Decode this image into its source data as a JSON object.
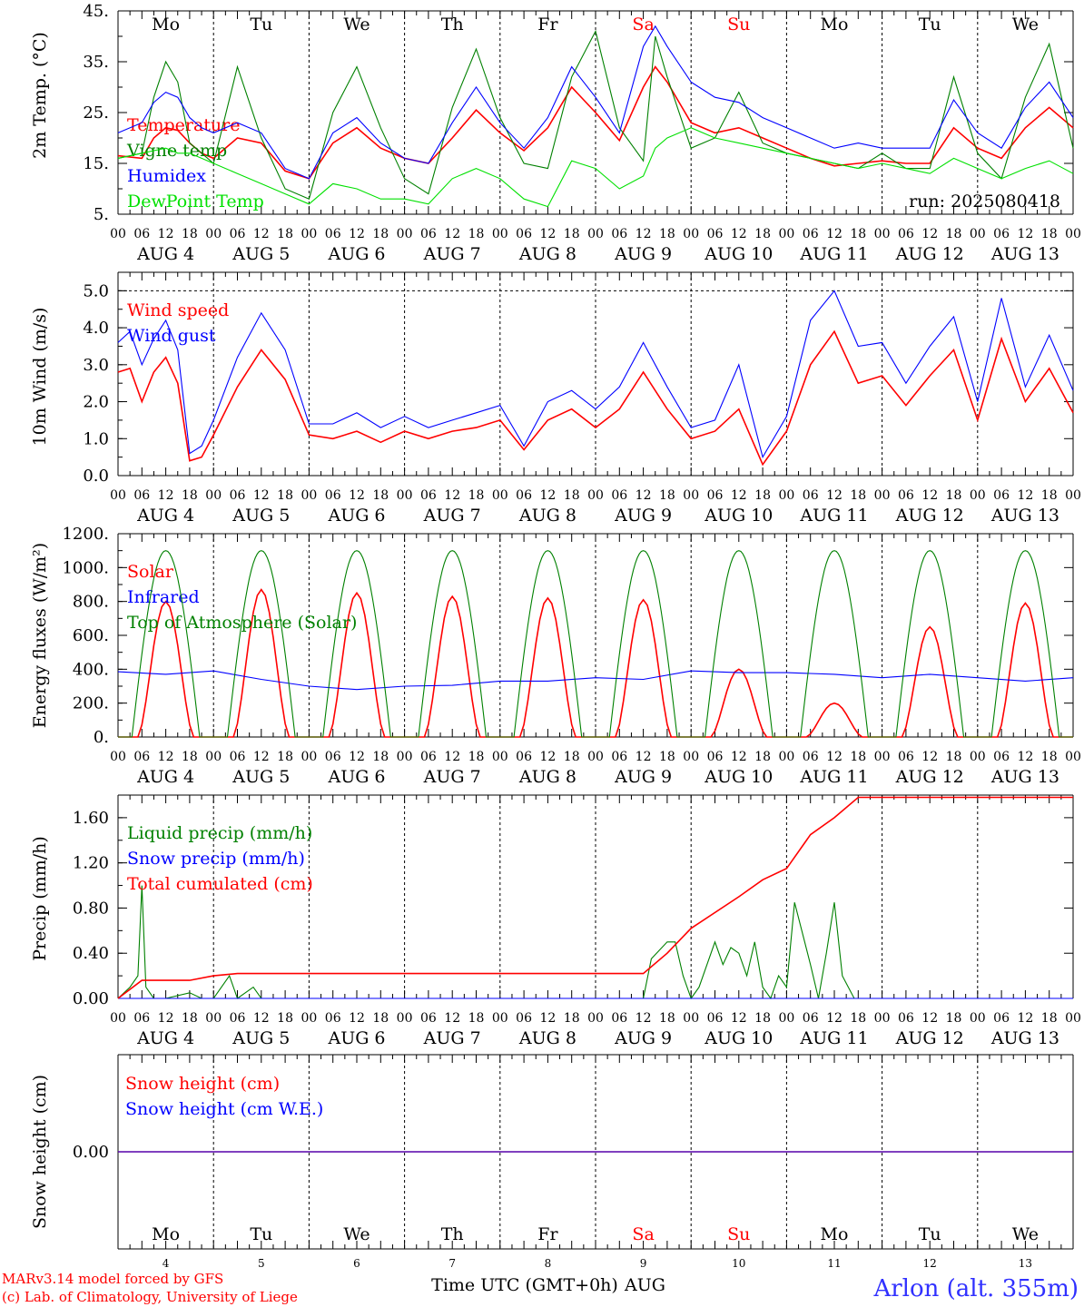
{
  "colors": {
    "red": "#ff0000",
    "blue": "#0000ff",
    "green": "#008000",
    "lightgreen": "#00e000",
    "grey": "#808080",
    "black": "#000000"
  },
  "xaxis": {
    "hour_ticks": [
      "00",
      "06",
      "12",
      "18"
    ],
    "day_labels": [
      "AUG  4",
      "AUG  5",
      "AUG  6",
      "AUG  7",
      "AUG  8",
      "AUG  9",
      "AUG 10",
      "AUG 11",
      "AUG 12",
      "AUG 13"
    ],
    "weekdays": [
      "Mo",
      "Tu",
      "We",
      "Th",
      "Fr",
      "Sa",
      "Su",
      "Mo",
      "Tu",
      "We"
    ],
    "weekend": [
      false,
      false,
      false,
      false,
      false,
      true,
      true,
      false,
      false,
      false
    ],
    "day_numbers": [
      "4",
      "5",
      "6",
      "7",
      "8",
      "9",
      "10",
      "11",
      "12",
      "13"
    ],
    "xlabel": "Time UTC (GMT+0h)",
    "month": "AUG"
  },
  "footer": {
    "model": "MARv3.14 model forced by GFS",
    "copyright": "(c) Lab. of Climatology, University of Liege",
    "station": "Arlon (alt. 355m)"
  },
  "chart_data": [
    {
      "type": "line",
      "ylabel": "2m Temp. (°C)",
      "yticks": [
        "5.",
        "15.",
        "25.",
        "35.",
        "45."
      ],
      "ylim": [
        5,
        45
      ],
      "x_range_hours": [
        0,
        240
      ],
      "run": "run: 2025080418",
      "series": [
        {
          "name": "Temperature",
          "color": "red",
          "x": [
            0,
            6,
            9,
            12,
            15,
            18,
            21,
            24,
            30,
            36,
            42,
            48,
            54,
            60,
            66,
            72,
            78,
            84,
            90,
            96,
            102,
            108,
            114,
            120,
            126,
            132,
            135,
            138,
            144,
            150,
            156,
            162,
            168,
            174,
            180,
            186,
            192,
            198,
            204,
            210,
            216,
            222,
            228,
            234,
            240
          ],
          "y": [
            16.5,
            16,
            20,
            22,
            21.5,
            19,
            17,
            16,
            20,
            19,
            13.5,
            12,
            19,
            22,
            18,
            16,
            15,
            20,
            25.5,
            21,
            17.5,
            22,
            30,
            25,
            19.5,
            30,
            34,
            31,
            23,
            21,
            22,
            20,
            18,
            16,
            14.5,
            15,
            15.5,
            15,
            15,
            22,
            18,
            16,
            22,
            26,
            22
          ]
        },
        {
          "name": "Vigne temp",
          "color": "green",
          "x": [
            0,
            6,
            9,
            12,
            15,
            18,
            21,
            24,
            30,
            36,
            42,
            48,
            54,
            60,
            66,
            72,
            78,
            84,
            90,
            96,
            102,
            108,
            114,
            120,
            126,
            132,
            135,
            138,
            144,
            150,
            156,
            162,
            168,
            174,
            180,
            186,
            192,
            198,
            204,
            210,
            216,
            222,
            228,
            234,
            240
          ],
          "y": [
            16,
            17,
            28,
            35,
            31,
            19,
            17,
            15,
            34,
            20,
            10,
            8,
            25,
            34,
            22,
            12,
            9,
            26,
            37.5,
            24,
            15,
            14,
            32,
            41,
            22,
            15.5,
            40,
            32,
            18,
            20,
            29,
            19,
            17,
            16,
            15,
            14,
            17,
            14,
            14,
            32,
            17,
            12,
            28,
            38.5,
            18
          ]
        },
        {
          "name": "Humidex",
          "color": "blue",
          "x": [
            0,
            6,
            9,
            12,
            15,
            18,
            21,
            24,
            30,
            36,
            42,
            48,
            54,
            60,
            66,
            72,
            78,
            84,
            90,
            96,
            102,
            108,
            114,
            120,
            126,
            132,
            135,
            138,
            144,
            150,
            156,
            162,
            168,
            174,
            180,
            186,
            192,
            198,
            204,
            210,
            216,
            222,
            228,
            234,
            240
          ],
          "y": [
            21,
            23,
            27,
            29,
            28,
            24,
            22,
            21,
            23,
            21,
            14,
            12,
            21,
            24,
            19,
            16,
            15,
            23,
            30,
            23,
            18,
            24,
            34,
            28,
            21,
            38,
            42,
            38,
            31,
            28,
            27,
            24,
            22,
            20,
            18,
            19,
            18,
            18,
            18,
            27.5,
            21,
            18,
            26,
            31,
            24
          ]
        },
        {
          "name": "DewPoint Temp",
          "color": "lightgreen",
          "x": [
            0,
            6,
            9,
            12,
            15,
            18,
            21,
            24,
            30,
            36,
            42,
            48,
            54,
            60,
            66,
            72,
            78,
            84,
            90,
            96,
            102,
            108,
            114,
            120,
            126,
            132,
            135,
            138,
            144,
            150,
            156,
            162,
            168,
            174,
            180,
            186,
            192,
            198,
            204,
            210,
            216,
            222,
            228,
            234,
            240
          ],
          "y": [
            16,
            17,
            17.5,
            18,
            17,
            17,
            16,
            15,
            13,
            11,
            9,
            7,
            11,
            10,
            8,
            8,
            7,
            12,
            14,
            12,
            8,
            6.5,
            15.5,
            14,
            10,
            12.5,
            18,
            20,
            22,
            20,
            19,
            18,
            17,
            16,
            15,
            14,
            15,
            14,
            13,
            16,
            14,
            12,
            14,
            15.5,
            13
          ]
        }
      ]
    },
    {
      "type": "line",
      "ylabel": "10m Wind (m/s)",
      "yticks": [
        "0.0",
        "1.0",
        "2.0",
        "3.0",
        "4.0",
        "5.0"
      ],
      "ylim": [
        0,
        5.5
      ],
      "x_range_hours": [
        0,
        240
      ],
      "series": [
        {
          "name": "Wind speed",
          "color": "red",
          "x": [
            0,
            3,
            6,
            9,
            12,
            15,
            18,
            21,
            24,
            30,
            36,
            42,
            48,
            54,
            60,
            66,
            72,
            78,
            84,
            90,
            96,
            102,
            108,
            114,
            120,
            126,
            132,
            138,
            144,
            150,
            156,
            162,
            168,
            174,
            180,
            186,
            192,
            198,
            204,
            210,
            216,
            222,
            228,
            234,
            240
          ],
          "y": [
            2.8,
            2.9,
            2.0,
            2.8,
            3.2,
            2.5,
            0.4,
            0.5,
            1.1,
            2.4,
            3.4,
            2.6,
            1.1,
            1.0,
            1.2,
            0.9,
            1.2,
            1.0,
            1.2,
            1.3,
            1.5,
            0.7,
            1.5,
            1.8,
            1.3,
            1.8,
            2.8,
            1.8,
            1.0,
            1.2,
            1.8,
            0.3,
            1.2,
            3.0,
            3.9,
            2.5,
            2.7,
            1.9,
            2.7,
            3.4,
            1.5,
            3.7,
            2.0,
            2.9,
            1.7
          ]
        },
        {
          "name": "Wind gust",
          "color": "blue",
          "x": [
            0,
            3,
            6,
            9,
            12,
            15,
            18,
            21,
            24,
            30,
            36,
            42,
            48,
            54,
            60,
            66,
            72,
            78,
            84,
            90,
            96,
            102,
            108,
            114,
            120,
            126,
            132,
            138,
            144,
            150,
            156,
            162,
            168,
            174,
            180,
            186,
            192,
            198,
            204,
            210,
            216,
            222,
            228,
            234,
            240
          ],
          "y": [
            3.6,
            3.9,
            3.0,
            3.7,
            4.2,
            3.4,
            0.6,
            0.8,
            1.5,
            3.2,
            4.4,
            3.4,
            1.4,
            1.4,
            1.7,
            1.3,
            1.6,
            1.3,
            1.5,
            1.7,
            1.9,
            0.8,
            2.0,
            2.3,
            1.8,
            2.4,
            3.6,
            2.4,
            1.3,
            1.5,
            3.0,
            0.5,
            1.6,
            4.2,
            5.0,
            3.5,
            3.6,
            2.5,
            3.5,
            4.3,
            2.0,
            4.8,
            2.4,
            3.8,
            2.3
          ]
        }
      ]
    },
    {
      "type": "line",
      "ylabel": "Energy fluxes (W/m²)",
      "yticks": [
        "0.",
        "200.",
        "400.",
        "600.",
        "800.",
        "1000.",
        "1200."
      ],
      "ylim": [
        0,
        1200
      ],
      "x_range_hours": [
        0,
        240
      ],
      "series": [
        {
          "name": "Solar",
          "color": "red",
          "peaks": [
            800,
            870,
            850,
            830,
            820,
            810,
            400,
            200,
            650,
            790
          ]
        },
        {
          "name": "Infrared",
          "color": "blue",
          "x": [
            0,
            12,
            24,
            36,
            48,
            60,
            72,
            84,
            96,
            108,
            120,
            132,
            144,
            156,
            168,
            180,
            192,
            204,
            216,
            228,
            240
          ],
          "y": [
            385,
            370,
            390,
            340,
            300,
            280,
            300,
            305,
            330,
            330,
            350,
            340,
            390,
            380,
            380,
            370,
            350,
            370,
            350,
            330,
            350
          ]
        },
        {
          "name": "Top of Atmosphere (Solar)",
          "color": "green",
          "peak": 1100
        }
      ]
    },
    {
      "type": "line",
      "ylabel": "Precip (mm/h)",
      "yticks": [
        "0.00",
        "0.40",
        "0.80",
        "1.20",
        "1.60"
      ],
      "ylim": [
        0,
        1.8
      ],
      "x_range_hours": [
        0,
        240
      ],
      "series": [
        {
          "name": "Liquid precip (mm/h)",
          "color": "green",
          "x": [
            0,
            3,
            5,
            6,
            7,
            9,
            12,
            18,
            21,
            24,
            28,
            30,
            34,
            36,
            40,
            132,
            134,
            138,
            140,
            142,
            144,
            146,
            150,
            152,
            154,
            156,
            158,
            160,
            162,
            164,
            166,
            168,
            170,
            174,
            176,
            178,
            180,
            182,
            185,
            240
          ],
          "y": [
            0,
            0.1,
            0.2,
            1.0,
            0.1,
            0,
            0,
            0.05,
            0,
            0,
            0.2,
            0,
            0.1,
            0,
            0,
            0,
            0.35,
            0.5,
            0.5,
            0.2,
            0,
            0.1,
            0.5,
            0.3,
            0.45,
            0.4,
            0.2,
            0.5,
            0.1,
            0,
            0.2,
            0.1,
            0.85,
            0.3,
            0,
            0.4,
            0.85,
            0.2,
            0,
            0
          ]
        },
        {
          "name": "Snow precip (mm/h)",
          "color": "blue",
          "x": [
            0,
            240
          ],
          "y": [
            0,
            0
          ]
        },
        {
          "name": "Total cumulated (cm)",
          "color": "red",
          "x": [
            0,
            6,
            18,
            24,
            30,
            132,
            138,
            144,
            156,
            162,
            168,
            174,
            180,
            186,
            240
          ],
          "y": [
            0,
            0.16,
            0.16,
            0.2,
            0.22,
            0.22,
            0.4,
            0.62,
            0.9,
            1.05,
            1.15,
            1.45,
            1.6,
            1.78,
            1.78
          ]
        }
      ]
    },
    {
      "type": "line",
      "ylabel": "Snow height (cm)",
      "yticks": [
        "0.00"
      ],
      "x_range_hours": [
        0,
        240
      ],
      "series": [
        {
          "name": "Snow height (cm)",
          "color": "red",
          "x": [
            0,
            240
          ],
          "y": [
            0,
            0
          ]
        },
        {
          "name": "Snow height (cm W.E.)",
          "color": "blue",
          "x": [
            0,
            240
          ],
          "y": [
            0,
            0
          ]
        }
      ]
    }
  ]
}
